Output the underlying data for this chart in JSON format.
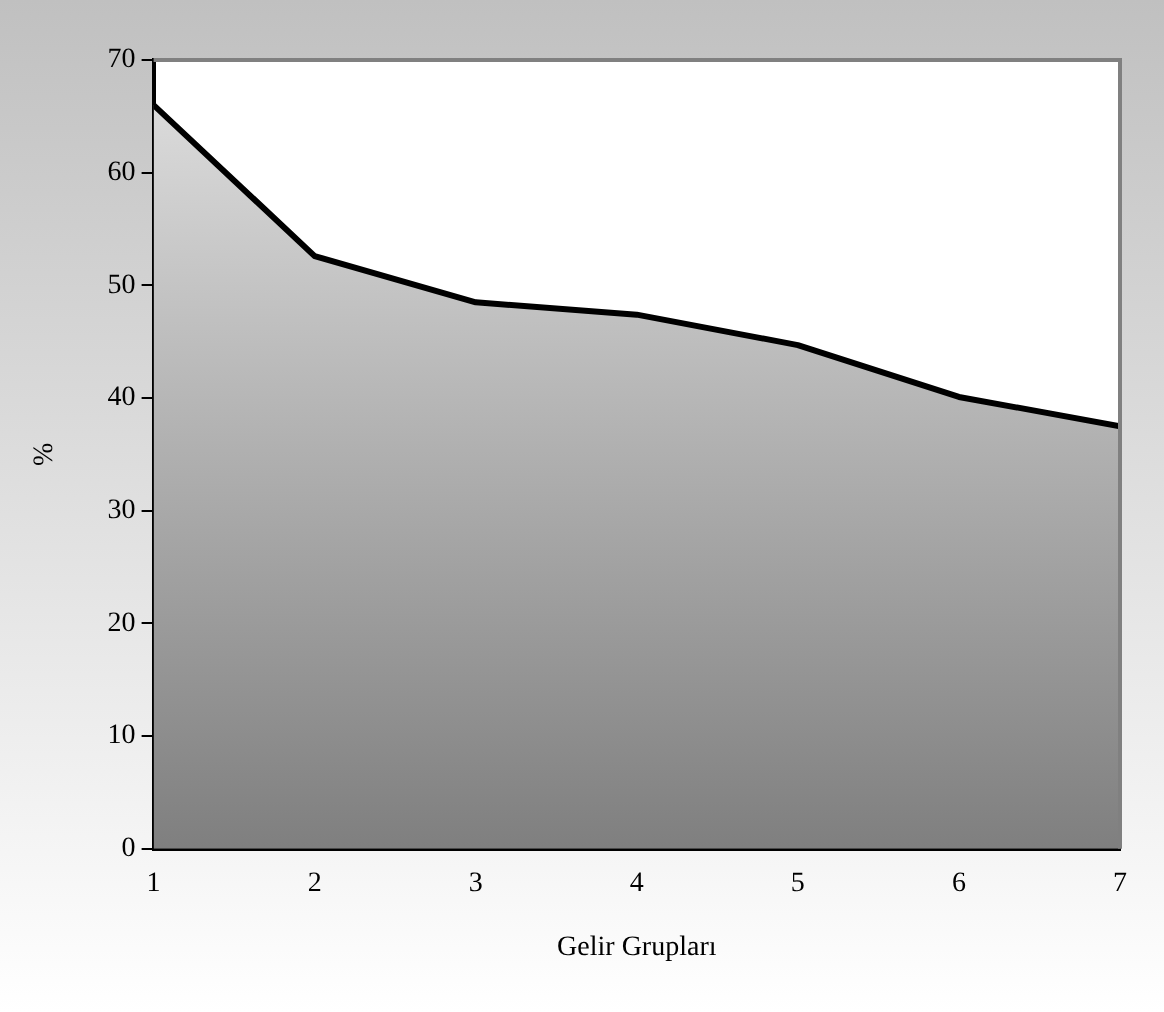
{
  "chart_data": {
    "type": "area",
    "xlabel": "Gelir Grupları",
    "ylabel": "%",
    "x": [
      1,
      2,
      3,
      4,
      5,
      6,
      7
    ],
    "xlim": [
      1,
      7
    ],
    "xticks": [
      1,
      2,
      3,
      4,
      5,
      6,
      7
    ],
    "ylim": [
      0,
      70
    ],
    "yticks": [
      0,
      10,
      20,
      30,
      40,
      50,
      60,
      70
    ],
    "series": [
      {
        "color": "#000000",
        "values": [
          66,
          52.6,
          48.5,
          47.4,
          44.7,
          40.1,
          37.5
        ]
      }
    ],
    "grid": false,
    "legend": false,
    "marker": "none",
    "line_style": "solid"
  }
}
